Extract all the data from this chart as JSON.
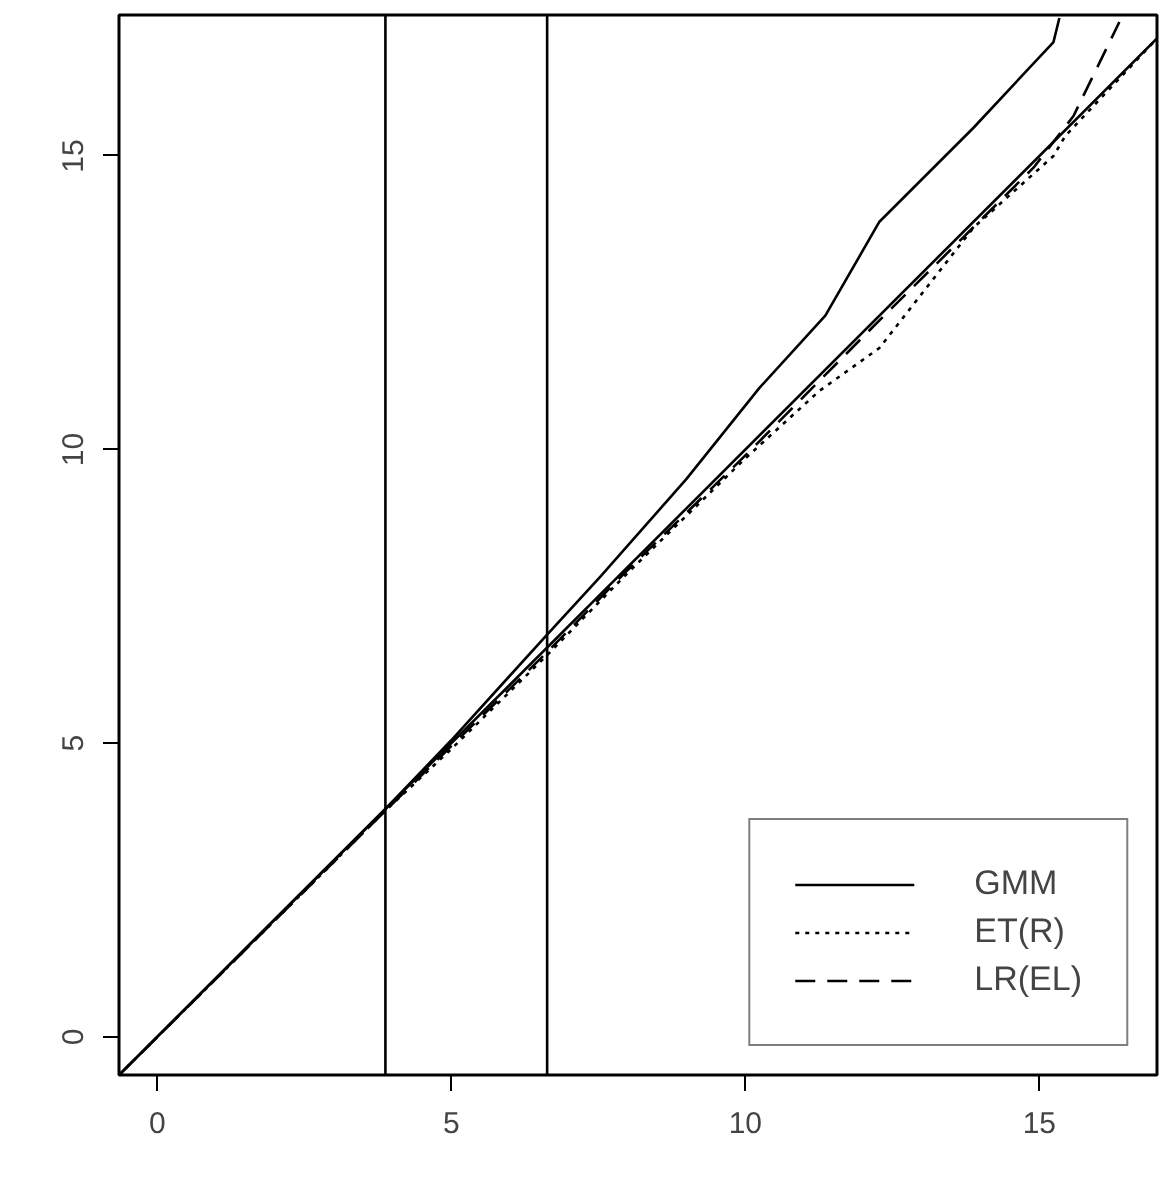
{
  "chart_data": {
    "type": "line",
    "xlim": [
      -0.65,
      17.0
    ],
    "ylim": [
      -0.65,
      17.4
    ],
    "xticks": [
      0,
      5,
      10,
      15
    ],
    "yticks": [
      0,
      5,
      10,
      15
    ],
    "grid": false,
    "legend": "bottom right",
    "series": [
      {
        "color": "#000000",
        "line_style": "solid",
        "x": [
          -0.65,
          17.0
        ],
        "values": [
          -0.65,
          17.0
        ]
      },
      {
        "name": "GMM",
        "color": "#000000",
        "line_style": "solid",
        "x": [
          -0.65,
          3.88,
          5,
          6.63,
          7.52,
          9,
          10.24,
          11.36,
          12.28,
          13.88,
          15.24,
          15.34
        ],
        "values": [
          -0.65,
          3.88,
          5.05,
          6.85,
          7.82,
          9.5,
          11.05,
          12.28,
          13.88,
          15.48,
          16.94,
          17.35
        ]
      },
      {
        "name": "ET(R)",
        "color": "#000000",
        "line_style": "dotted",
        "x": [
          -0.65,
          3.88,
          5,
          6.63,
          8,
          10,
          11.26,
          12.28,
          13.88,
          15.24,
          15.44,
          17.0
        ],
        "values": [
          -0.65,
          3.85,
          4.9,
          6.5,
          7.9,
          9.85,
          11.0,
          11.73,
          13.78,
          15.0,
          15.34,
          17.0
        ]
      },
      {
        "name": "LR(EL)",
        "color": "#000000",
        "line_style": "dashed",
        "x": [
          -0.65,
          3.88,
          5,
          6.63,
          8,
          10,
          12.28,
          14.9,
          15.58,
          16.36
        ],
        "values": [
          -0.65,
          3.85,
          4.95,
          6.55,
          7.95,
          9.9,
          12.2,
          14.8,
          15.68,
          17.28
        ]
      }
    ],
    "ref_lines": [
      {
        "axis": "x",
        "value": 3.88
      },
      {
        "axis": "x",
        "value": 6.63
      }
    ]
  }
}
